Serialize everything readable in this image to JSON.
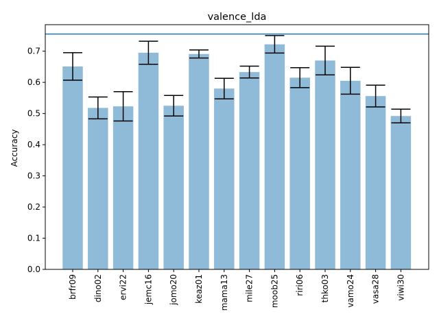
{
  "chart_data": {
    "type": "bar",
    "title": "valence_lda",
    "xlabel": "",
    "ylabel": "Accuracy",
    "ylim": [
      0.0,
      0.785
    ],
    "yticks": [
      "0.0",
      "0.1",
      "0.2",
      "0.3",
      "0.4",
      "0.5",
      "0.6",
      "0.7"
    ],
    "categories": [
      "brfr09",
      "dino02",
      "ervi22",
      "jemc16",
      "jomo20",
      "keaz01",
      "mama13",
      "mile27",
      "moob25",
      "riri06",
      "thko03",
      "vamo24",
      "vasa28",
      "viwi30"
    ],
    "values": [
      0.651,
      0.518,
      0.523,
      0.695,
      0.525,
      0.691,
      0.58,
      0.633,
      0.722,
      0.615,
      0.67,
      0.605,
      0.556,
      0.492
    ],
    "errors": [
      0.044,
      0.035,
      0.047,
      0.037,
      0.033,
      0.013,
      0.033,
      0.019,
      0.028,
      0.032,
      0.046,
      0.043,
      0.035,
      0.022
    ],
    "reference_line": 0.755,
    "grid": false,
    "colors": {
      "bar": "#8fbbd9",
      "errorbar": "#000000",
      "reference_line": "#1f77b4",
      "axes": "#000000"
    }
  }
}
